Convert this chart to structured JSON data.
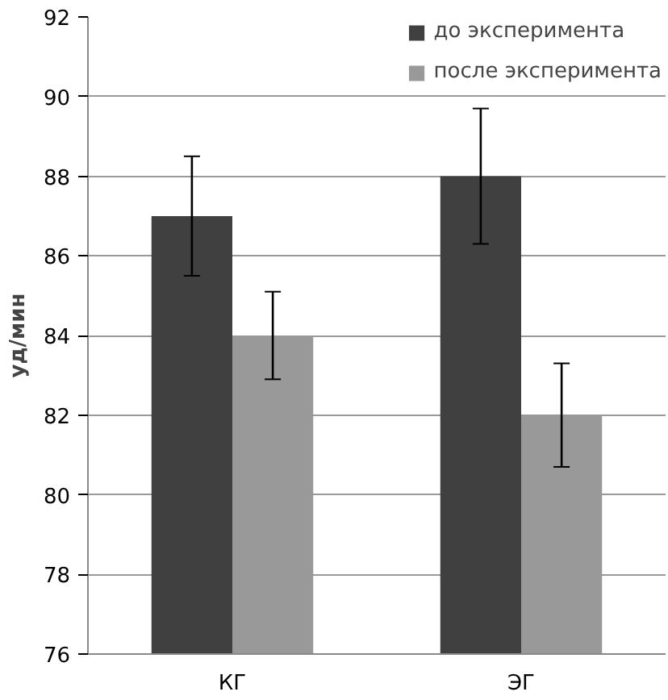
{
  "chart_data": {
    "type": "bar",
    "ylabel": "уд/мин",
    "categories": [
      "КГ",
      "ЭГ"
    ],
    "series": [
      {
        "name": "до эксперимента",
        "color": "#404040",
        "values": [
          87,
          88
        ],
        "errors": [
          1.5,
          1.7
        ]
      },
      {
        "name": "после эксперимента",
        "color": "#999999",
        "values": [
          84,
          82
        ],
        "errors": [
          1.1,
          1.3
        ]
      }
    ],
    "ylim": [
      76,
      92
    ],
    "yticks": [
      76,
      78,
      80,
      82,
      84,
      86,
      88,
      90,
      92
    ],
    "grid": "y",
    "legend": "top right"
  }
}
